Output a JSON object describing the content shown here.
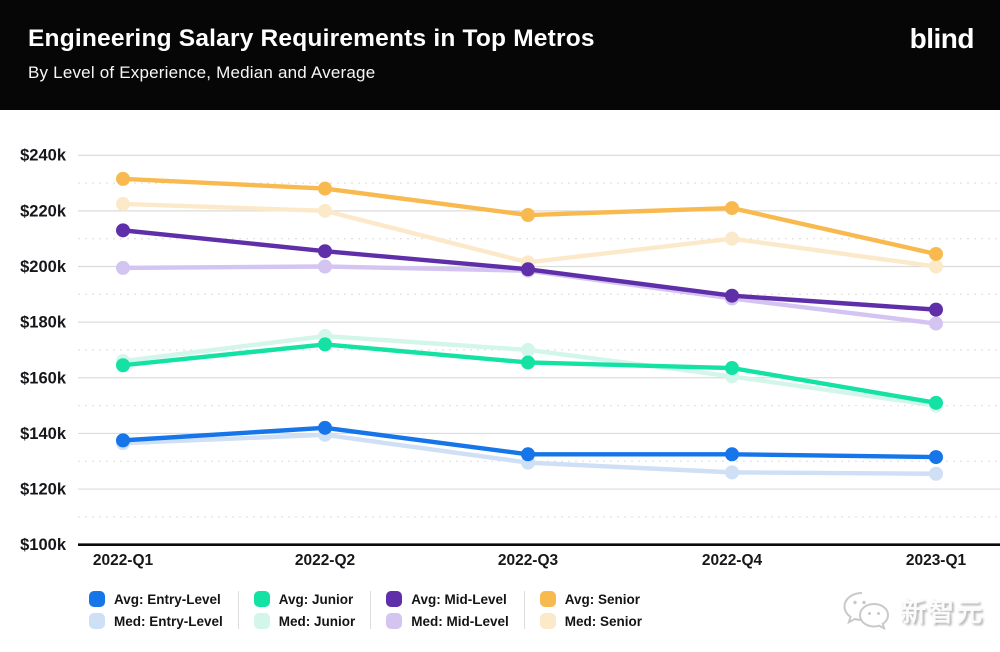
{
  "header": {
    "title": "Engineering Salary Requirements in Top Metros",
    "subtitle": "By Level of Experience, Median and Average",
    "logo": "blind"
  },
  "watermark": {
    "text": "新智元"
  },
  "chart_data": {
    "type": "line",
    "title": "Engineering Salary Requirements in Top Metros",
    "subtitle": "By Level of Experience, Median and Average",
    "x_categories": [
      "2022-Q1",
      "2022-Q2",
      "2022-Q3",
      "2022-Q4",
      "2023-Q1"
    ],
    "y_axis": {
      "unit": "USD thousands",
      "min": 100,
      "max": 248,
      "axis_line_value": 100,
      "major_ticks": [
        {
          "value": 240,
          "label": "$240k"
        },
        {
          "value": 220,
          "label": "$220k"
        },
        {
          "value": 200,
          "label": "$200k"
        },
        {
          "value": 180,
          "label": "$180k"
        },
        {
          "value": 160,
          "label": "$160k"
        },
        {
          "value": 140,
          "label": "$140k"
        },
        {
          "value": 120,
          "label": "$120k"
        },
        {
          "value": 100,
          "label": "$100k"
        }
      ],
      "minor_ticks": [
        230,
        210,
        190,
        170,
        150,
        130,
        110
      ]
    },
    "grid": true,
    "legend_position": "bottom",
    "series": [
      {
        "name": "Med: Entry-Level",
        "role": "median",
        "color": "#CEDFF6",
        "values": [
          136.5,
          139.5,
          129.5,
          126,
          125.5
        ]
      },
      {
        "name": "Med: Junior",
        "role": "median",
        "color": "#D2F6EA",
        "values": [
          166,
          175,
          170,
          160.5,
          150
        ]
      },
      {
        "name": "Med: Mid-Level",
        "role": "median",
        "color": "#D4C4F2",
        "values": [
          199.5,
          200,
          198.5,
          188.5,
          179.5
        ]
      },
      {
        "name": "Med: Senior",
        "role": "median",
        "color": "#FBE9C9",
        "values": [
          222.5,
          220,
          201.5,
          210,
          200
        ]
      },
      {
        "name": "Avg: Entry-Level",
        "role": "average",
        "color": "#1675E8",
        "values": [
          137.5,
          142,
          132.5,
          132.5,
          131.5
        ]
      },
      {
        "name": "Avg: Junior",
        "role": "average",
        "color": "#13E2A4",
        "values": [
          164.5,
          172,
          165.5,
          163.5,
          151
        ]
      },
      {
        "name": "Avg: Mid-Level",
        "role": "average",
        "color": "#5E2FA8",
        "values": [
          213,
          205.5,
          199,
          189.5,
          184.5
        ]
      },
      {
        "name": "Avg: Senior",
        "role": "average",
        "color": "#F8B94F",
        "values": [
          231.5,
          228,
          218.5,
          221,
          204.5
        ]
      }
    ]
  },
  "legend": {
    "groups": [
      {
        "items": [
          "Avg: Entry-Level",
          "Med: Entry-Level"
        ]
      },
      {
        "items": [
          "Avg: Junior",
          "Med: Junior"
        ]
      },
      {
        "items": [
          "Avg: Mid-Level",
          "Med: Mid-Level"
        ]
      },
      {
        "items": [
          "Avg: Senior",
          "Med: Senior"
        ]
      }
    ]
  }
}
